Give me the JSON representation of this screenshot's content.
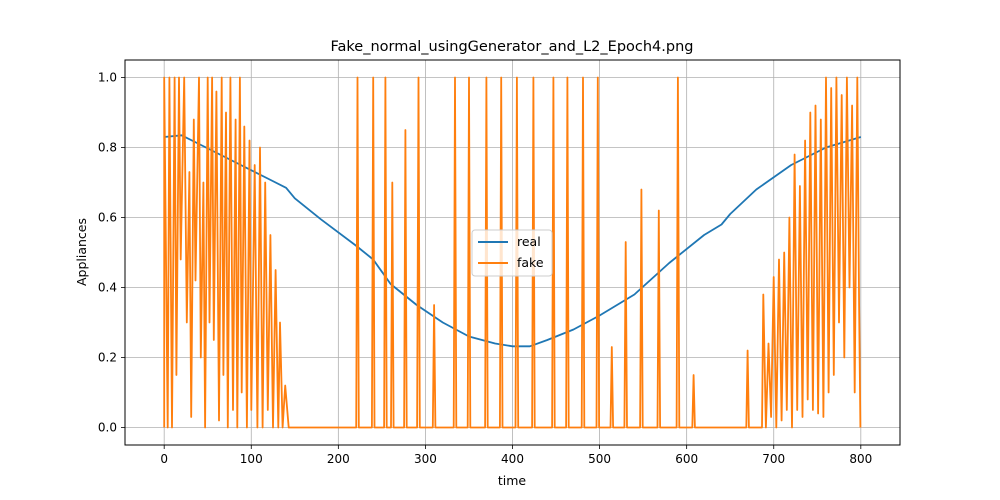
{
  "chart_data": {
    "type": "line",
    "title": "Fake_normal_usingGenerator_and_L2_Epoch4.png",
    "xlabel": "time",
    "ylabel": "Appliances",
    "xlim": [
      -45,
      845
    ],
    "ylim": [
      -0.05,
      1.05
    ],
    "xticks": [
      "0",
      "100",
      "200",
      "300",
      "400",
      "500",
      "600",
      "700",
      "800"
    ],
    "yticks": [
      "0.0",
      "0.2",
      "0.4",
      "0.6",
      "0.8",
      "1.0"
    ],
    "grid": true,
    "legend_position": "center",
    "colors": {
      "real": "#1f77b4",
      "fake": "#ff7f0e"
    },
    "series": [
      {
        "name": "real",
        "x": [
          0,
          20,
          40,
          80,
          120,
          140,
          150,
          180,
          220,
          240,
          260,
          290,
          320,
          350,
          380,
          400,
          420,
          440,
          470,
          500,
          540,
          580,
          620,
          640,
          650,
          680,
          720,
          760,
          800
        ],
        "y": [
          0.83,
          0.835,
          0.81,
          0.76,
          0.71,
          0.685,
          0.655,
          0.595,
          0.52,
          0.48,
          0.41,
          0.35,
          0.3,
          0.26,
          0.24,
          0.232,
          0.232,
          0.25,
          0.28,
          0.32,
          0.38,
          0.47,
          0.55,
          0.58,
          0.61,
          0.68,
          0.75,
          0.8,
          0.83
        ]
      },
      {
        "name": "fake",
        "spikes": [
          {
            "x": 0,
            "y": 1.0
          },
          {
            "x": 4,
            "y": 0.0
          },
          {
            "x": 6,
            "y": 1.0
          },
          {
            "x": 9,
            "y": 0.0
          },
          {
            "x": 12,
            "y": 1.0
          },
          {
            "x": 14,
            "y": 0.15
          },
          {
            "x": 17,
            "y": 1.0
          },
          {
            "x": 19,
            "y": 0.48
          },
          {
            "x": 23,
            "y": 1.0
          },
          {
            "x": 26,
            "y": 0.3
          },
          {
            "x": 29,
            "y": 0.73
          },
          {
            "x": 31,
            "y": 0.03
          },
          {
            "x": 34,
            "y": 0.88
          },
          {
            "x": 36,
            "y": 0.42
          },
          {
            "x": 40,
            "y": 1.0
          },
          {
            "x": 42,
            "y": 0.2
          },
          {
            "x": 45,
            "y": 0.7
          },
          {
            "x": 47,
            "y": 0.0
          },
          {
            "x": 50,
            "y": 1.0
          },
          {
            "x": 52,
            "y": 0.3
          },
          {
            "x": 55,
            "y": 1.0
          },
          {
            "x": 57,
            "y": 0.25
          },
          {
            "x": 60,
            "y": 0.96
          },
          {
            "x": 63,
            "y": 0.02
          },
          {
            "x": 66,
            "y": 1.0
          },
          {
            "x": 68,
            "y": 0.15
          },
          {
            "x": 71,
            "y": 0.9
          },
          {
            "x": 73,
            "y": 0.0
          },
          {
            "x": 76,
            "y": 1.0
          },
          {
            "x": 79,
            "y": 0.05
          },
          {
            "x": 82,
            "y": 0.88
          },
          {
            "x": 84,
            "y": 0.0
          },
          {
            "x": 87,
            "y": 1.0
          },
          {
            "x": 89,
            "y": 0.1
          },
          {
            "x": 92,
            "y": 0.86
          },
          {
            "x": 95,
            "y": 0.0
          },
          {
            "x": 98,
            "y": 0.82
          },
          {
            "x": 100,
            "y": 0.05
          },
          {
            "x": 104,
            "y": 0.75
          },
          {
            "x": 107,
            "y": 0.0
          },
          {
            "x": 110,
            "y": 0.8
          },
          {
            "x": 113,
            "y": 0.0
          },
          {
            "x": 116,
            "y": 0.7
          },
          {
            "x": 119,
            "y": 0.05
          },
          {
            "x": 122,
            "y": 0.55
          },
          {
            "x": 125,
            "y": 0.0
          },
          {
            "x": 128,
            "y": 0.45
          },
          {
            "x": 131,
            "y": 0.0
          },
          {
            "x": 133,
            "y": 0.3
          },
          {
            "x": 136,
            "y": 0.0
          },
          {
            "x": 139,
            "y": 0.12
          },
          {
            "x": 143,
            "y": 0.0
          },
          {
            "x": 222,
            "y": 1.0
          },
          {
            "x": 240,
            "y": 1.0
          },
          {
            "x": 254,
            "y": 1.0
          },
          {
            "x": 262,
            "y": 0.7
          },
          {
            "x": 277,
            "y": 0.85
          },
          {
            "x": 292,
            "y": 1.0
          },
          {
            "x": 310,
            "y": 0.35
          },
          {
            "x": 334,
            "y": 1.0
          },
          {
            "x": 350,
            "y": 1.0
          },
          {
            "x": 370,
            "y": 1.0
          },
          {
            "x": 387,
            "y": 1.0
          },
          {
            "x": 405,
            "y": 1.0
          },
          {
            "x": 424,
            "y": 1.0
          },
          {
            "x": 447,
            "y": 1.0
          },
          {
            "x": 463,
            "y": 1.0
          },
          {
            "x": 481,
            "y": 1.0
          },
          {
            "x": 498,
            "y": 1.0
          },
          {
            "x": 514,
            "y": 0.23
          },
          {
            "x": 530,
            "y": 0.53
          },
          {
            "x": 548,
            "y": 0.68
          },
          {
            "x": 568,
            "y": 0.62
          },
          {
            "x": 590,
            "y": 1.0
          },
          {
            "x": 608,
            "y": 0.15
          },
          {
            "x": 670,
            "y": 0.22
          },
          {
            "x": 688,
            "y": 0.38
          },
          {
            "x": 691,
            "y": 0.0
          },
          {
            "x": 694,
            "y": 0.24
          },
          {
            "x": 697,
            "y": 0.03
          },
          {
            "x": 700,
            "y": 0.43
          },
          {
            "x": 703,
            "y": 0.0
          },
          {
            "x": 706,
            "y": 0.48
          },
          {
            "x": 709,
            "y": 0.02
          },
          {
            "x": 712,
            "y": 0.5
          },
          {
            "x": 715,
            "y": 0.05
          },
          {
            "x": 718,
            "y": 0.6
          },
          {
            "x": 721,
            "y": 0.0
          },
          {
            "x": 724,
            "y": 0.78
          },
          {
            "x": 727,
            "y": 0.05
          },
          {
            "x": 730,
            "y": 0.69
          },
          {
            "x": 733,
            "y": 0.03
          },
          {
            "x": 736,
            "y": 0.82
          },
          {
            "x": 739,
            "y": 0.08
          },
          {
            "x": 742,
            "y": 0.9
          },
          {
            "x": 745,
            "y": 0.05
          },
          {
            "x": 748,
            "y": 0.92
          },
          {
            "x": 751,
            "y": 0.04
          },
          {
            "x": 754,
            "y": 0.88
          },
          {
            "x": 757,
            "y": 0.03
          },
          {
            "x": 760,
            "y": 1.0
          },
          {
            "x": 763,
            "y": 0.1
          },
          {
            "x": 766,
            "y": 0.97
          },
          {
            "x": 769,
            "y": 0.15
          },
          {
            "x": 772,
            "y": 1.0
          },
          {
            "x": 775,
            "y": 0.3
          },
          {
            "x": 778,
            "y": 0.95
          },
          {
            "x": 781,
            "y": 0.2
          },
          {
            "x": 784,
            "y": 1.0
          },
          {
            "x": 787,
            "y": 0.4
          },
          {
            "x": 790,
            "y": 0.92
          },
          {
            "x": 793,
            "y": 0.1
          },
          {
            "x": 796,
            "y": 1.0
          },
          {
            "x": 798,
            "y": 0.35
          }
        ]
      }
    ]
  }
}
